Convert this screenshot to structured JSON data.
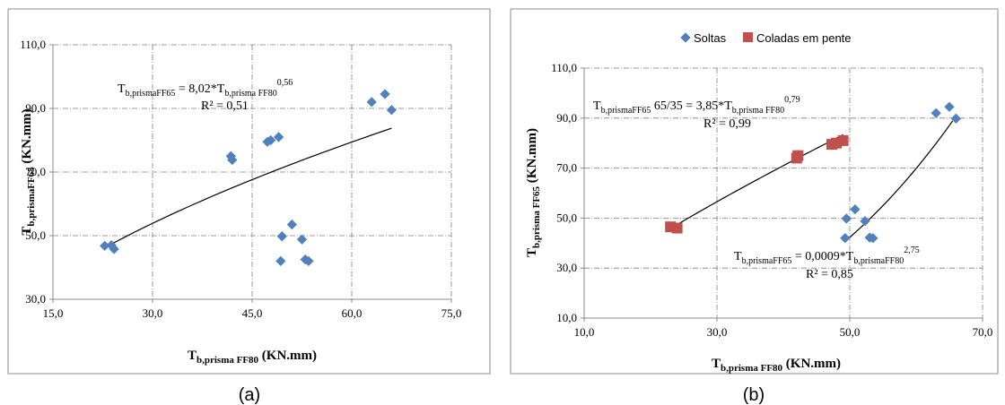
{
  "panels": [
    {
      "label": "(a)",
      "equation": {
        "lhs": "T",
        "lhs_sub": "b,prismaFF65",
        "rhs": " = 8,02*T",
        "rhs_sub": "b,prisma FF80",
        "exp": "0,56",
        "r2": "R² = 0,51"
      }
    },
    {
      "label": "(b)",
      "equations": [
        {
          "lhs": "T",
          "lhs_sub": "b,prismaFF65",
          "mid": " 65/35  = 3,85*T",
          "rhs_sub": "b,prisma FF80",
          "exp": "0,79",
          "r2": "R² = 0,99"
        },
        {
          "lhs": "T",
          "lhs_sub": "b,prismaFF65",
          "mid": " = 0,0009*T",
          "rhs_sub": "b,prismaFF80",
          "exp": "2,75",
          "r2": "R² = 0,85"
        }
      ]
    }
  ],
  "chart_data": [
    {
      "type": "scatter",
      "xlabel": {
        "main": "T",
        "sub": "b,prisma FF80",
        "rest": " (KN.mm)"
      },
      "ylabel": {
        "main": "T",
        "sub": "b,prismaFF65",
        "rest": " (KN.mm)"
      },
      "xlim": [
        15,
        75
      ],
      "ylim": [
        30,
        110
      ],
      "xticks": [
        "15,0",
        "30,0",
        "45,0",
        "60,0",
        "75,0"
      ],
      "xtick_values": [
        15,
        30,
        45,
        60,
        75
      ],
      "yticks": [
        "30,0",
        "50,0",
        "70,0",
        "90,0",
        "110,0"
      ],
      "ytick_values": [
        30,
        50,
        70,
        90,
        110
      ],
      "grid": true,
      "series": [
        {
          "color": "#4F81BD",
          "marker": "diamond",
          "points": [
            [
              22.8,
              46.8
            ],
            [
              23.8,
              47.0
            ],
            [
              24.2,
              45.8
            ],
            [
              41.8,
              75.0
            ],
            [
              42.0,
              73.8
            ],
            [
              47.3,
              79.5
            ],
            [
              47.8,
              80.0
            ],
            [
              49.0,
              81.0
            ],
            [
              49.3,
              42.0
            ],
            [
              49.5,
              49.8
            ],
            [
              51.0,
              53.5
            ],
            [
              52.5,
              48.8
            ],
            [
              53.0,
              42.5
            ],
            [
              53.5,
              42.0
            ],
            [
              63.0,
              92.0
            ],
            [
              65.0,
              94.5
            ],
            [
              66.0,
              89.5
            ]
          ]
        }
      ],
      "trendline": {
        "type": "power",
        "a": 8.02,
        "b": 0.56,
        "x_range": [
          22.8,
          66.0
        ]
      }
    },
    {
      "type": "scatter",
      "xlabel": {
        "main": "T",
        "sub": "b,prisma FF80",
        "rest": " (KN.mm)"
      },
      "ylabel": {
        "main": "T",
        "sub": "b,prisma FF65",
        "rest": " (KN.mm)"
      },
      "xlim": [
        10,
        70
      ],
      "ylim": [
        10,
        110
      ],
      "xticks": [
        "10,0",
        "30,0",
        "50,0",
        "70,0"
      ],
      "xtick_values": [
        10,
        30,
        50,
        70
      ],
      "yticks": [
        "10,0",
        "30,0",
        "50,0",
        "70,0",
        "90,0",
        "110,0"
      ],
      "ytick_values": [
        10,
        30,
        50,
        70,
        90,
        110
      ],
      "grid": true,
      "legend_position": "top",
      "series": [
        {
          "name": "Soltas",
          "color": "#4F81BD",
          "marker": "diamond",
          "points": [
            [
              49.3,
              42.0
            ],
            [
              49.5,
              49.8
            ],
            [
              50.8,
              53.5
            ],
            [
              52.3,
              48.8
            ],
            [
              53.0,
              42.2
            ],
            [
              53.5,
              42.0
            ],
            [
              63.0,
              92.0
            ],
            [
              65.0,
              94.5
            ],
            [
              66.0,
              89.8
            ]
          ],
          "trendline": {
            "type": "power",
            "a": 0.0009,
            "b": 2.75,
            "x_range": [
              49.3,
              65.5
            ]
          }
        },
        {
          "name": "Coladas em pente",
          "color": "#C0504D",
          "marker": "square",
          "points": [
            [
              23.0,
              46.5
            ],
            [
              24.0,
              46.0
            ],
            [
              42.0,
              74.0
            ],
            [
              42.2,
              75.0
            ],
            [
              47.3,
              79.5
            ],
            [
              48.0,
              80.0
            ],
            [
              49.0,
              81.0
            ]
          ],
          "trendline": {
            "type": "power",
            "a": 3.85,
            "b": 0.79,
            "x_range": [
              23.0,
              49.0
            ]
          }
        }
      ]
    }
  ]
}
